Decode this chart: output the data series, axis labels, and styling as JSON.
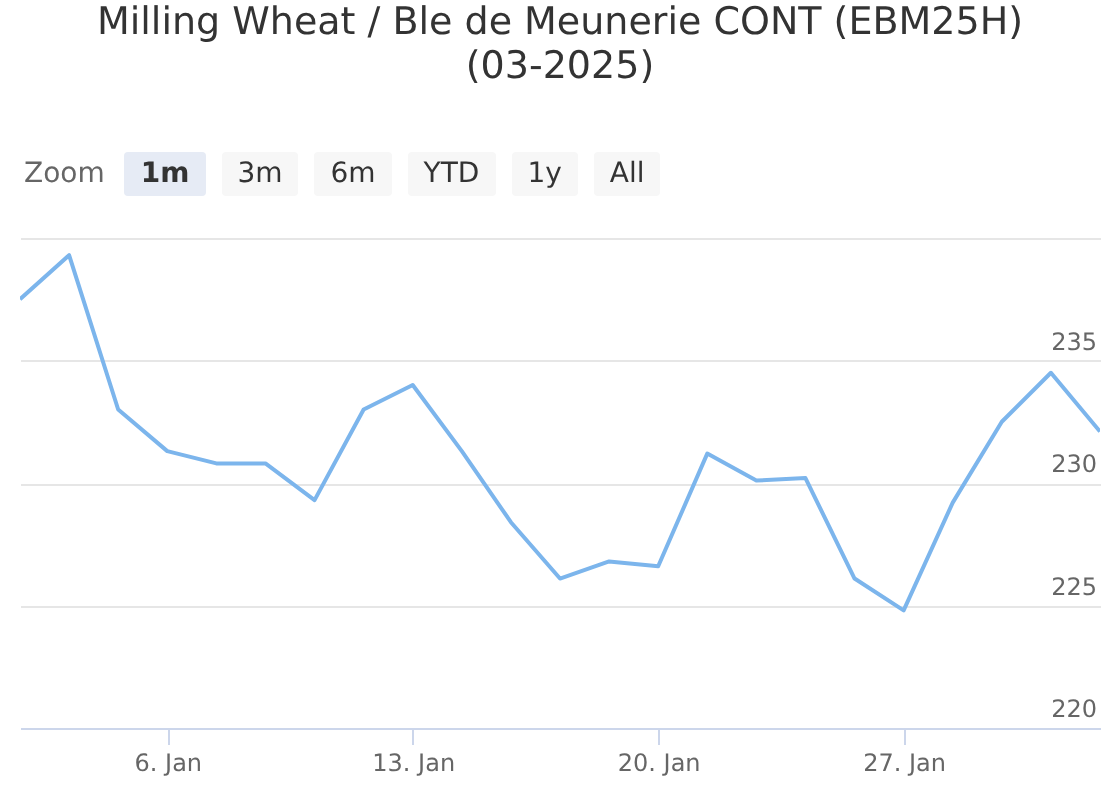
{
  "chart_data": {
    "type": "line",
    "title": "Milling Wheat / Ble de Meunerie CONT (EBM25H) (03-2025)",
    "annotations": [
      "Zoom",
      "1m",
      "3m",
      "6m",
      "YTD",
      "1y",
      "All"
    ],
    "categories": [
      null,
      null,
      null,
      "6. Jan",
      null,
      null,
      null,
      null,
      "13. Jan",
      null,
      null,
      null,
      null,
      "20. Jan",
      null,
      null,
      null,
      null,
      "27. Jan",
      null,
      null,
      null,
      null
    ],
    "series": [
      {
        "color": "#7cb5ec",
        "values": [
          237.5,
          239.3,
          233.0,
          231.3,
          230.8,
          230.8,
          229.3,
          233.0,
          234.0,
          231.3,
          228.4,
          226.1,
          226.8,
          226.6,
          231.2,
          230.1,
          230.2,
          226.1,
          224.8,
          229.2,
          232.5,
          234.5,
          232.1
        ]
      }
    ],
    "ylim": [
      220,
      240
    ],
    "yticks": [
      220,
      225,
      230,
      235,
      {
        "value": 240,
        "label": null
      }
    ],
    "grid": "y",
    "marker": "none",
    "line_style": "solid"
  }
}
